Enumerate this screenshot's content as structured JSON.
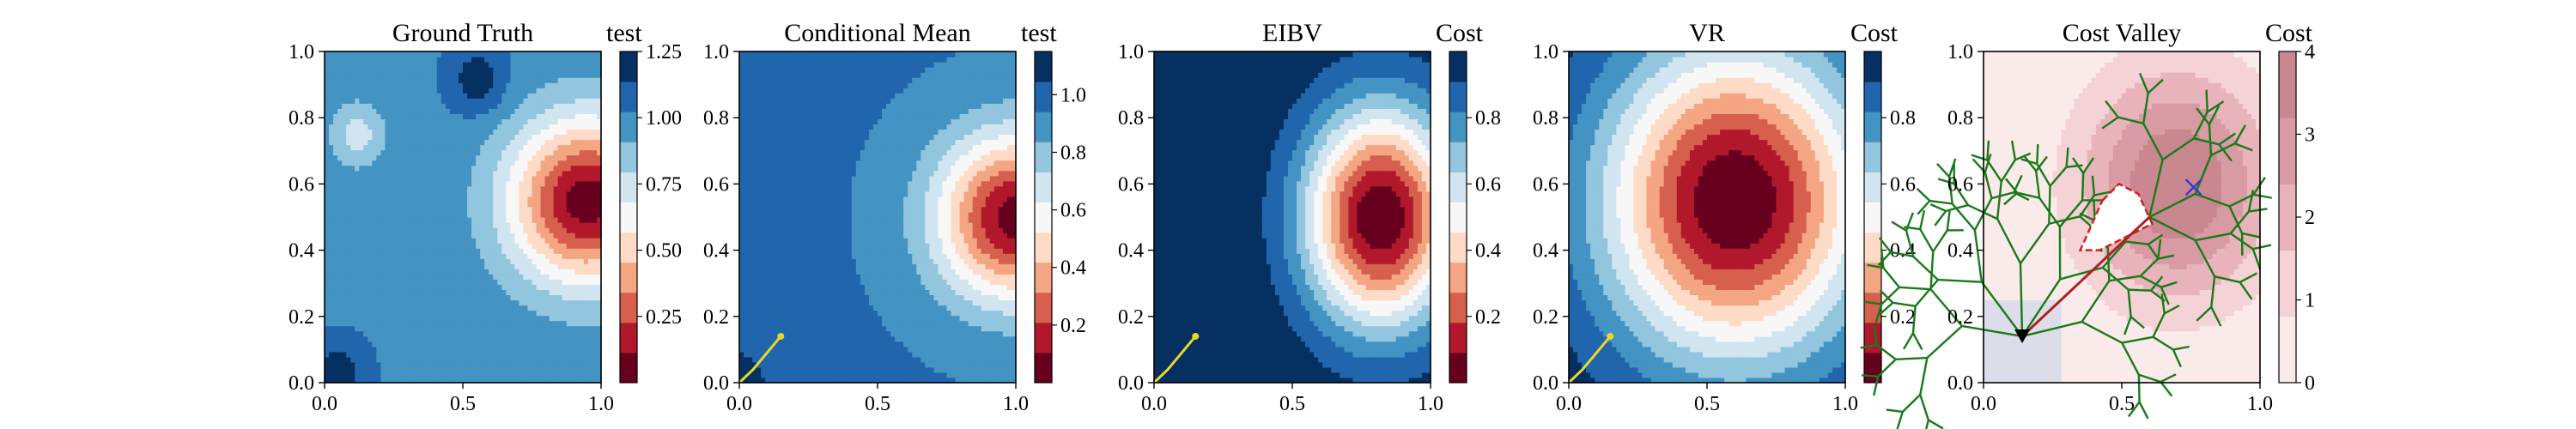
{
  "figure_description": "Five side-by-side filled-contour panels with colorbars",
  "chart_data": [
    {
      "type": "heatmap",
      "title": "Ground Truth",
      "colorbar_label": "test",
      "colorbar_ticks": [
        "0.25",
        "0.50",
        "0.75",
        "1.00",
        "1.25"
      ],
      "colorbar_range": [
        0.0,
        1.25
      ],
      "colormap": "RdBu",
      "xlim": [
        0.0,
        1.0
      ],
      "ylim": [
        0.0,
        1.0
      ],
      "xticks": [
        "0.0",
        "0.5",
        "1.0"
      ],
      "yticks": [
        "0.0",
        "0.2",
        "0.4",
        "0.6",
        "0.8",
        "1.0"
      ],
      "features": [
        {
          "shape": "hotspot",
          "center": [
            0.95,
            0.55
          ],
          "min_value": 0.05
        },
        {
          "shape": "patch",
          "center": [
            0.55,
            0.92
          ],
          "value": 1.2
        },
        {
          "shape": "patch",
          "center": [
            0.12,
            0.75
          ],
          "value": 0.75
        },
        {
          "shape": "patch",
          "center": [
            0.05,
            0.03
          ],
          "value": 1.2
        }
      ],
      "background_value": 1.0
    },
    {
      "type": "heatmap",
      "title": "Conditional Mean",
      "colorbar_label": "test",
      "colorbar_ticks": [
        "0.2",
        "0.4",
        "0.6",
        "0.8",
        "1.0"
      ],
      "colorbar_range": [
        0.0,
        1.15
      ],
      "colormap": "RdBu",
      "xlim": [
        0.0,
        1.0
      ],
      "ylim": [
        0.0,
        1.0
      ],
      "xticks": [
        "0.0",
        "0.5",
        "1.0"
      ],
      "yticks": [
        "0.0",
        "0.2",
        "0.4",
        "0.6",
        "0.8",
        "1.0"
      ],
      "features": [
        {
          "shape": "hotspot",
          "center": [
            1.0,
            0.5
          ],
          "min_value": 0.05
        },
        {
          "shape": "patch",
          "center": [
            0.0,
            0.0
          ],
          "value": 1.15
        }
      ],
      "background_value": 0.95,
      "path": [
        [
          0.0,
          0.0
        ],
        [
          0.05,
          0.04
        ],
        [
          0.1,
          0.09
        ],
        [
          0.15,
          0.14
        ]
      ],
      "path_color": "#e8d72a"
    },
    {
      "type": "heatmap",
      "title": "EIBV",
      "colorbar_label": "Cost",
      "colorbar_ticks": [
        "0.2",
        "0.4",
        "0.6",
        "0.8"
      ],
      "colorbar_range": [
        0.0,
        1.0
      ],
      "colormap": "RdBu",
      "xlim": [
        0.0,
        1.0
      ],
      "ylim": [
        0.0,
        1.0
      ],
      "xticks": [
        "0.0",
        "0.5",
        "1.0"
      ],
      "yticks": [
        "0.0",
        "0.2",
        "0.4",
        "0.6",
        "0.8",
        "1.0"
      ],
      "features": [
        {
          "shape": "crescent",
          "center": [
            0.82,
            0.5
          ],
          "min_value": 0.0
        }
      ],
      "background_value": 1.0,
      "path": [
        [
          0.0,
          0.0
        ],
        [
          0.05,
          0.04
        ],
        [
          0.1,
          0.09
        ],
        [
          0.15,
          0.14
        ]
      ],
      "path_color": "#e8d72a"
    },
    {
      "type": "heatmap",
      "title": "VR",
      "colorbar_label": "Cost",
      "colorbar_ticks": [
        "0.2",
        "0.4",
        "0.6",
        "0.8"
      ],
      "colorbar_range": [
        0.0,
        1.0
      ],
      "colormap": "RdBu",
      "xlim": [
        0.0,
        1.0
      ],
      "ylim": [
        0.0,
        1.0
      ],
      "xticks": [
        "0.0",
        "0.5",
        "1.0"
      ],
      "yticks": [
        "0.0",
        "0.2",
        "0.4",
        "0.6",
        "0.8",
        "1.0"
      ],
      "features": [
        {
          "shape": "blob",
          "center": [
            0.6,
            0.55
          ],
          "min_value": 0.0
        }
      ],
      "background_value": 1.0,
      "path": [
        [
          0.0,
          0.0
        ],
        [
          0.05,
          0.04
        ],
        [
          0.1,
          0.09
        ],
        [
          0.15,
          0.14
        ]
      ],
      "path_color": "#e8d72a"
    },
    {
      "type": "heatmap",
      "title": "Cost Valley",
      "colorbar_label": "Cost",
      "colorbar_ticks": [
        "0",
        "1",
        "2",
        "3",
        "4"
      ],
      "colorbar_range": [
        0,
        4
      ],
      "colormap": "RdBu (light)",
      "xlim": [
        0.0,
        1.0
      ],
      "ylim": [
        0.0,
        1.0
      ],
      "xticks": [
        "0.0",
        "0.5",
        "1.0"
      ],
      "yticks": [
        "0.0",
        "0.2",
        "0.4",
        "0.6",
        "0.8",
        "1.0"
      ],
      "tree_color": "#1a7a1a",
      "route": [
        [
          0.14,
          0.14
        ],
        [
          0.6,
          0.5
        ]
      ],
      "route_color": "#b02020",
      "start_marker": [
        0.14,
        0.14
      ],
      "target_marker": [
        0.76,
        0.59
      ],
      "obstacle": [
        [
          0.43,
          0.55
        ],
        [
          0.49,
          0.6
        ],
        [
          0.56,
          0.57
        ],
        [
          0.61,
          0.48
        ],
        [
          0.42,
          0.4
        ],
        [
          0.35,
          0.4
        ]
      ],
      "obstacle_color": "#cc2222"
    }
  ]
}
